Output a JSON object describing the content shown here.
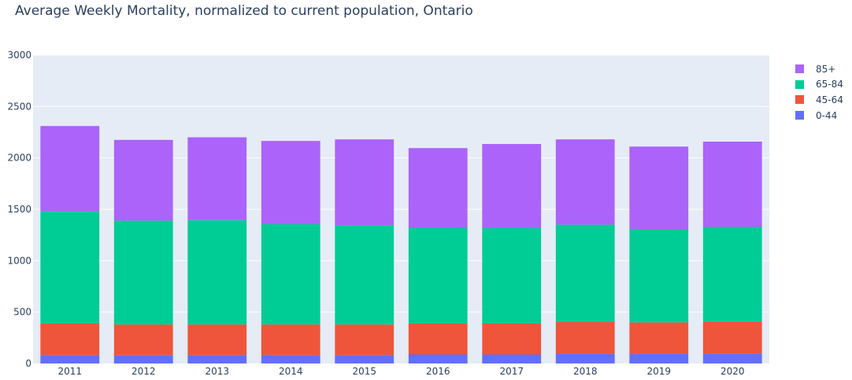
{
  "chart_data": {
    "type": "bar",
    "stacked": true,
    "title": "Average Weekly Mortality, normalized to current population, Ontario",
    "xlabel": "",
    "ylabel": "",
    "categories": [
      "2011",
      "2012",
      "2013",
      "2014",
      "2015",
      "2016",
      "2017",
      "2018",
      "2019",
      "2020"
    ],
    "ylim": [
      0,
      3000
    ],
    "yticks": [
      0,
      500,
      1000,
      1500,
      2000,
      2500,
      3000
    ],
    "grid": true,
    "legend_position": "top-right",
    "plot_background": "#e5ecf6",
    "series": [
      {
        "name": "0-44",
        "color": "#636efa",
        "values": [
          82,
          82,
          82,
          82,
          82,
          88,
          88,
          95,
          95,
          98
        ]
      },
      {
        "name": "45-64",
        "color": "#ef553b",
        "values": [
          308,
          298,
          298,
          298,
          298,
          302,
          302,
          310,
          305,
          310
        ]
      },
      {
        "name": "65-84",
        "color": "#00cc96",
        "values": [
          1090,
          1010,
          1015,
          975,
          965,
          930,
          930,
          945,
          905,
          920
        ]
      },
      {
        "name": "85+",
        "color": "#ab63fa",
        "values": [
          830,
          785,
          805,
          810,
          835,
          775,
          815,
          830,
          805,
          830
        ]
      }
    ]
  }
}
